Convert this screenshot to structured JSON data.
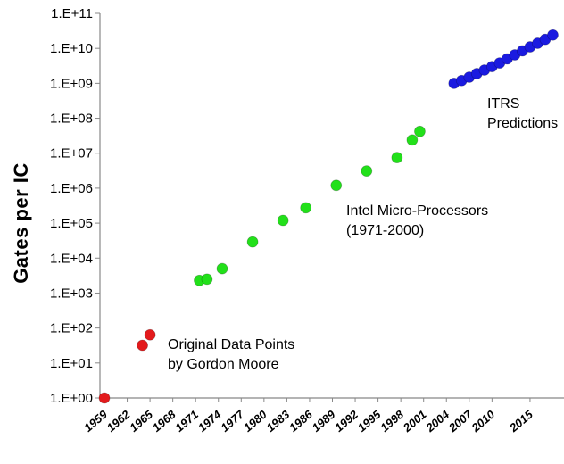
{
  "chart_data": {
    "type": "scatter",
    "ylabel": "Gates per IC",
    "y_scale": "log10",
    "ylim_exponent": [
      0,
      11
    ],
    "y_tick_labels": [
      "1.E+00",
      "1.E+01",
      "1.E+02",
      "1.E+03",
      "1.E+04",
      "1.E+05",
      "1.E+06",
      "1.E+07",
      "1.E+08",
      "1.E+09",
      "1.E+10",
      "1.E+11"
    ],
    "xlim": [
      1959,
      2019
    ],
    "x_tick_labels": [
      "1959",
      "1962",
      "1965",
      "1968",
      "1971",
      "1974",
      "1977",
      "1980",
      "1983",
      "1986",
      "1989",
      "1992",
      "1995",
      "1998",
      "2001",
      "2004",
      "2007",
      "2010",
      "2015"
    ],
    "grid": false,
    "series": [
      {
        "name_lines": [
          "Original Data Points",
          "by Gordon Moore"
        ],
        "color": "#e31a1c",
        "points": [
          {
            "x": 1959,
            "y": 1
          },
          {
            "x": 1964,
            "y": 32
          },
          {
            "x": 1965,
            "y": 64
          }
        ]
      },
      {
        "name_lines": [
          "Intel Micro-Processors",
          "(1971-2000)"
        ],
        "color": "#22e01a",
        "points": [
          {
            "x": 1971.5,
            "y": 2300
          },
          {
            "x": 1972.5,
            "y": 2500
          },
          {
            "x": 1974.5,
            "y": 5000
          },
          {
            "x": 1978.5,
            "y": 29000
          },
          {
            "x": 1982.5,
            "y": 120000
          },
          {
            "x": 1985.5,
            "y": 275000
          },
          {
            "x": 1989.5,
            "y": 1200000
          },
          {
            "x": 1993.5,
            "y": 3100000
          },
          {
            "x": 1997.5,
            "y": 7500000
          },
          {
            "x": 1999.5,
            "y": 24000000
          },
          {
            "x": 2000.5,
            "y": 42000000
          }
        ]
      },
      {
        "name_lines": [
          "ITRS",
          "Predictions"
        ],
        "color": "#1a1ae0",
        "points": [
          {
            "x": 2005,
            "y": 1000000000
          },
          {
            "x": 2006,
            "y": 1200000000
          },
          {
            "x": 2007,
            "y": 1500000000
          },
          {
            "x": 2008,
            "y": 1900000000
          },
          {
            "x": 2009,
            "y": 2400000000
          },
          {
            "x": 2010,
            "y": 3000000000
          },
          {
            "x": 2011,
            "y": 3800000000
          },
          {
            "x": 2012,
            "y": 5000000000
          },
          {
            "x": 2013,
            "y": 6500000000
          },
          {
            "x": 2014,
            "y": 8500000000
          },
          {
            "x": 2015,
            "y": 11000000000
          },
          {
            "x": 2016,
            "y": 14000000000
          },
          {
            "x": 2017,
            "y": 18000000000
          },
          {
            "x": 2018,
            "y": 24000000000
          }
        ]
      }
    ]
  }
}
